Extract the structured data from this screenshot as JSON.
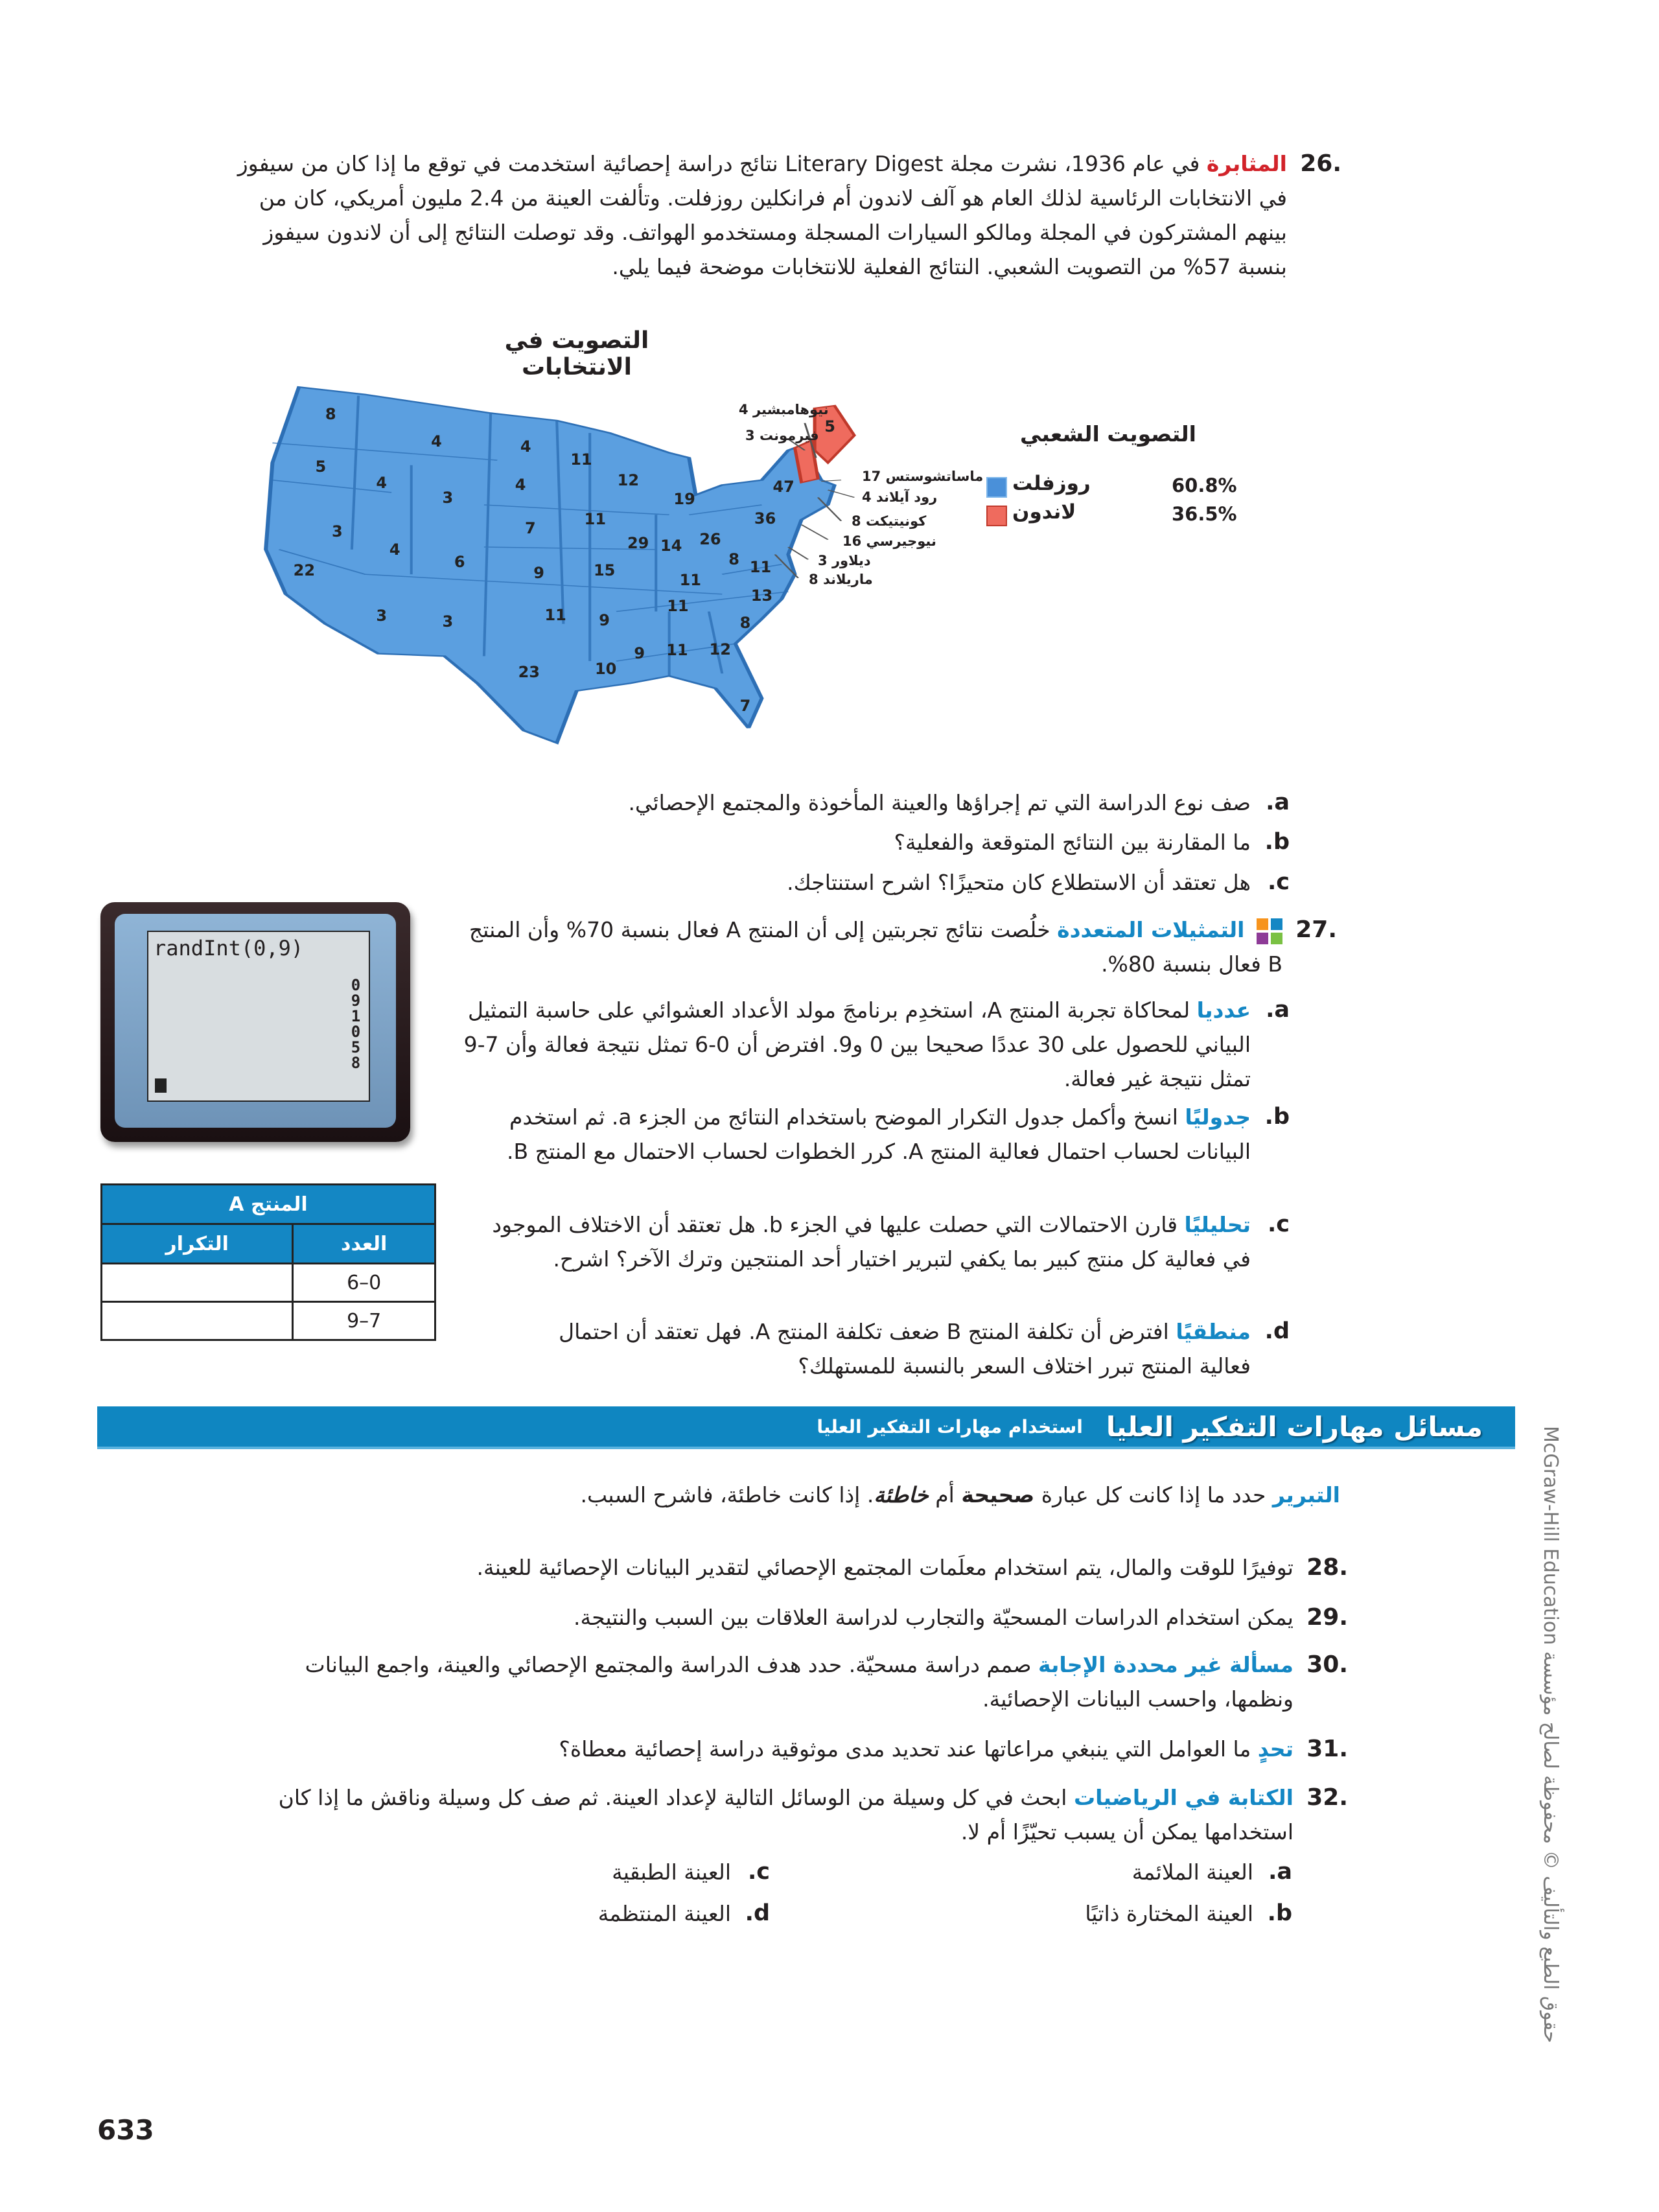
{
  "problem26": {
    "number": "26.",
    "keyword": "المثابرة",
    "text": "في عام 1936، نشرت مجلة Literary Digest نتائج دراسة إحصائية استخدمت في توقع ما إذا كان من سيفوز في الانتخابات الرئاسية لذلك العام هو آلف لاندون أم فرانكلين روزفلت. وتألفت العينة من 2.4 مليون أمريكي، كان من بينهم المشتركون في المجلة ومالكو السيارات المسجلة ومستخدمو الهواتف. وقد توصلت النتائج إلى أن لاندون سيفوز بنسبة 57% من التصويت الشعبي. النتائج الفعلية للانتخابات موضحة فيما يلي.",
    "items": [
      {
        "letter": "a.",
        "text": "صف نوع الدراسة التي تم إجراؤها والعينة المأخوذة والمجتمع الإحصائي."
      },
      {
        "letter": "b.",
        "text": "ما المقارنة بين النتائج المتوقعة والفعلية؟"
      },
      {
        "letter": "c.",
        "text": "هل تعتقد أن الاستطلاع كان متحيزًا؟ اشرح استنتاجك."
      }
    ]
  },
  "map": {
    "title": "التصويت في الانتخابات",
    "colors": {
      "roosevelt": "#4a90d9",
      "landon": "#ef6b5e",
      "border": "#2d6fb5"
    },
    "state_votes": [
      "8",
      "4",
      "4",
      "11",
      "5",
      "4",
      "3",
      "4",
      "12",
      "19",
      "47",
      "36",
      "11",
      "7",
      "3",
      "4",
      "6",
      "9",
      "15",
      "29",
      "14",
      "26",
      "8",
      "11",
      "11",
      "22",
      "13",
      "11",
      "3",
      "3",
      "11",
      "9",
      "8",
      "9",
      "11",
      "12",
      "10",
      "23",
      "7",
      "5"
    ],
    "northeast_labels": [
      {
        "name": "نيوهامبشير",
        "votes": "4"
      },
      {
        "name": "فيرمونت",
        "votes": "3"
      },
      {
        "name": "ماساتشوستس",
        "votes": "17"
      },
      {
        "name": "رود آيلاند",
        "votes": "4"
      },
      {
        "name": "كونيتيكت",
        "votes": "8"
      },
      {
        "name": "نيوجيرسي",
        "votes": "16"
      },
      {
        "name": "ديلاور",
        "votes": "3"
      },
      {
        "name": "ماريلاند",
        "votes": "8"
      }
    ],
    "legend": {
      "title": "التصويت الشعبي",
      "entries": [
        {
          "name": "روزفلت",
          "percent": "60.8%",
          "color": "#4a90d9"
        },
        {
          "name": "لاندون",
          "percent": "36.5%",
          "color": "#ef6b5e"
        }
      ]
    }
  },
  "problem27": {
    "number": "27.",
    "icon": "multiple-representations-icon",
    "keyword": "التمثيلات المتعددة",
    "text": "خلُصت نتائج تجربتين إلى أن المنتج A فعال بنسبة 70% وأن المنتج B فعال بنسبة 80%.",
    "items": [
      {
        "letter": "a.",
        "keyword": "عدديا",
        "text": "لمحاكاة تجربة المنتج A، استخدِم برنامجَ مولد الأعداد العشوائي على حاسبة التمثيل البياني للحصول على 30 عددًا صحيحا بين 0 و9. افترض أن 0-6 تمثل نتيجة فعالة وأن 7-9 تمثل نتيجة غير فعالة."
      },
      {
        "letter": "b.",
        "keyword": "جدوليًا",
        "text": "انسخ وأكمل جدول التكرار الموضح باستخدام النتائج من الجزء a. ثم استخدم البيانات لحساب احتمال فعالية المنتج A. كرر الخطوات لحساب الاحتمال مع المنتج B."
      },
      {
        "letter": "c.",
        "keyword": "تحليليًا",
        "text": "قارن الاحتمالات التي حصلت عليها في الجزء b. هل تعتقد أن الاختلاف الموجود في فعالية كل منتج كبير بما يكفي لتبرير اختيار أحد المنتجين وترك الآخر؟ اشرح."
      },
      {
        "letter": "d.",
        "keyword": "منطقيًا",
        "text": "افترض أن تكلفة المنتج B ضعف تكلفة المنتج A. فهل تعتقد أن احتمال فعالية المنتج تبرر اختلاف السعر بالنسبة للمستهلك؟"
      }
    ]
  },
  "calculator": {
    "command": "randInt(0,9)",
    "outputs": [
      "0",
      "9",
      "1",
      "0",
      "5",
      "8"
    ]
  },
  "freq_table": {
    "title": "المنتج A",
    "headers": [
      "العدد",
      "التكرار"
    ],
    "rows": [
      [
        "0–6",
        ""
      ],
      [
        "7–9",
        ""
      ]
    ]
  },
  "hots": {
    "title": "مسائل مهارات التفكير العليا",
    "subtitle": "استخدام مهارات التفكير العليا",
    "justify": {
      "keyword": "التبرير",
      "text1": "حدد ما إذا كانت كل عبارة",
      "true_word": "صحيحة",
      "or": "أم",
      "false_word": "خاطئة",
      "text2": ". إذا كانت خاطئة، فاشرح السبب."
    },
    "problems": [
      {
        "number": "28.",
        "keyword": "",
        "text": "توفيرًا للوقت والمال، يتم استخدام معلَمات المجتمع الإحصائي لتقدير البيانات الإحصائية للعينة."
      },
      {
        "number": "29.",
        "keyword": "",
        "text": "يمكن استخدام الدراسات المسحيّة والتجارب لدراسة العلاقات بين السبب والنتيجة."
      },
      {
        "number": "30.",
        "keyword": "مسألة غير محددة الإجابة",
        "text": "صمم دراسة مسحيّة. حدد هدف الدراسة والمجتمع الإحصائي والعينة، واجمع البيانات ونظمها، واحسب البيانات الإحصائية."
      },
      {
        "number": "31.",
        "keyword": "تحدٍ",
        "text": "ما العوامل التي ينبغي مراعاتها عند تحديد مدى موثوقية دراسة إحصائية معطاة؟"
      },
      {
        "number": "32.",
        "keyword": "الكتابة في الرياضيات",
        "text": "ابحث في كل وسيلة من الوسائل التالية لإعداد العينة. ثم صف كل وسيلة وناقش ما إذا كان استخدامها يمكن أن يسبب تحيّزًا أم لا."
      }
    ],
    "p32_items": [
      {
        "letter": "a.",
        "text": "العينة الملائمة"
      },
      {
        "letter": "b.",
        "text": "العينة المختارة ذاتيًا"
      },
      {
        "letter": "c.",
        "text": "العينة الطبقية"
      },
      {
        "letter": "d.",
        "text": "العينة المنتظمة"
      }
    ]
  },
  "side_copyright": "حقوق الطبع والتأليف © محفوظة لصالح مؤسسة McGraw-Hill Education",
  "page_number": "633"
}
